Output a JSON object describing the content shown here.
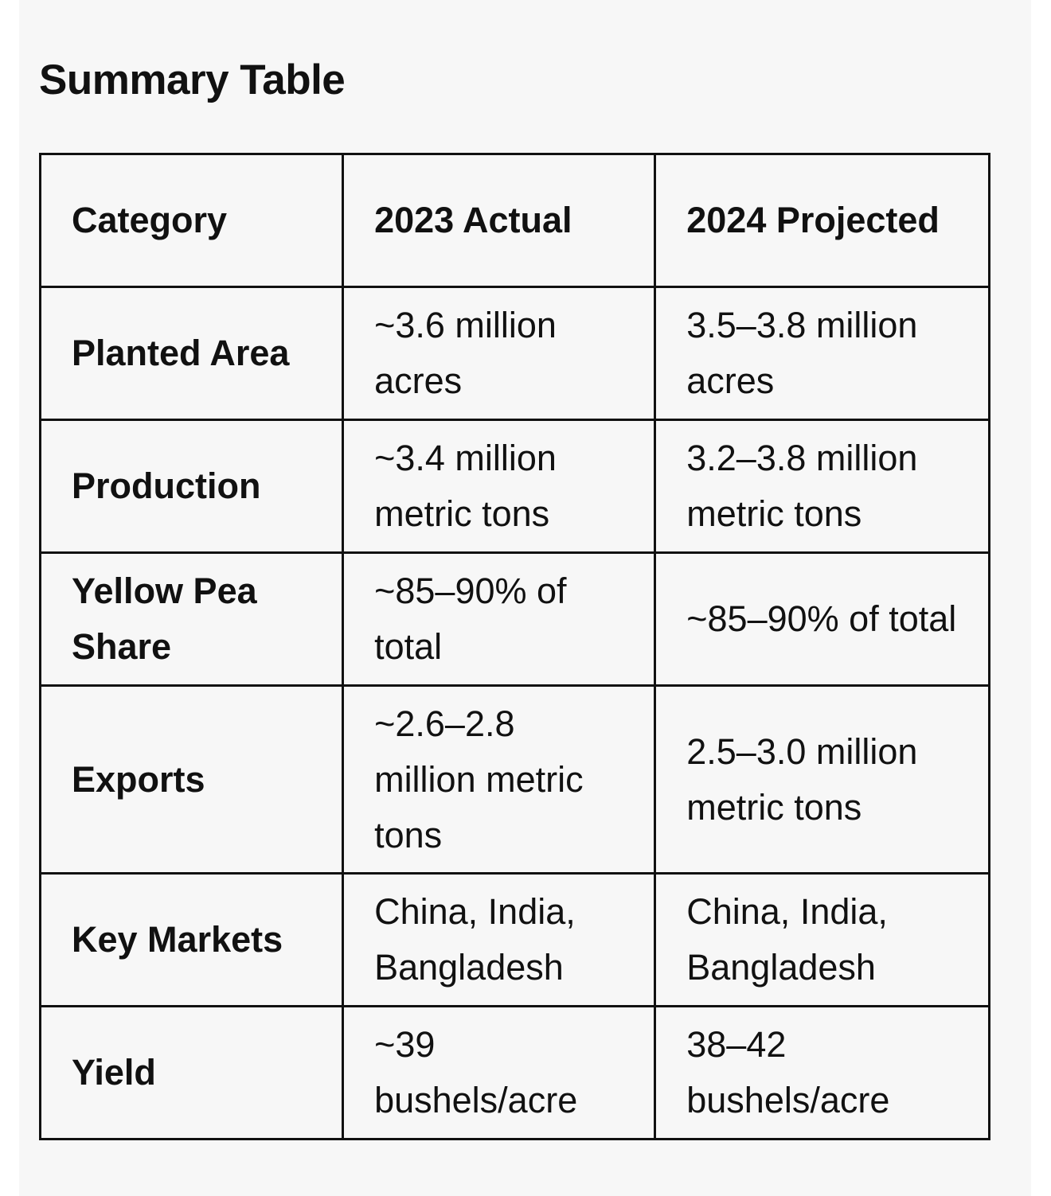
{
  "title": "Summary Table",
  "headers": [
    "Category",
    "2023 Actual",
    "2024 Projected"
  ],
  "rows": [
    {
      "category": "Planted Area",
      "actual_2023": "~3.6 million acres",
      "projected_2024": "3.5–3.8 million acres"
    },
    {
      "category": "Production",
      "actual_2023": "~3.4 million metric tons",
      "projected_2024": "3.2–3.8 million metric tons"
    },
    {
      "category": "Yellow Pea Share",
      "actual_2023": "~85–90% of total",
      "projected_2024": "~85–90% of total"
    },
    {
      "category": "Exports",
      "actual_2023": "~2.6–2.8 million metric tons",
      "projected_2024": "2.5–3.0 million metric tons"
    },
    {
      "category": "Key Markets",
      "actual_2023": "China, India, Bangladesh",
      "projected_2024": "China, India, Bangladesh"
    },
    {
      "category": "Yield",
      "actual_2023": "~39 bushels/acre",
      "projected_2024": "38–42 bushels/acre"
    }
  ]
}
